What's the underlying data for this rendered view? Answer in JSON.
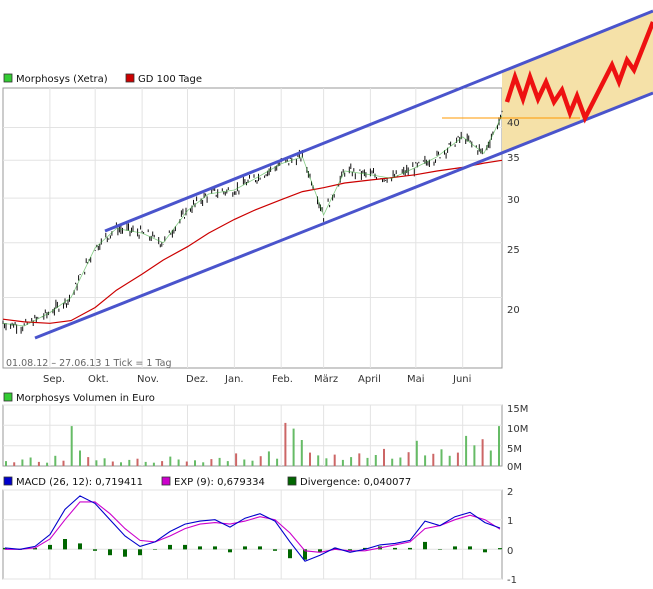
{
  "price_panel": {
    "legend": [
      {
        "label": "Morphosys (Xetra)",
        "color": "#33cc33"
      },
      {
        "label": "GD 100 Tage",
        "color": "#cc0000"
      }
    ],
    "range_label": "01.08.12 – 27.06.13   1 Tick = 1 Tag",
    "y_ticks": [
      "40",
      "35",
      "30",
      "25",
      "20"
    ],
    "x_ticks": [
      "Sep.",
      "Okt.",
      "Nov.",
      "Dez.",
      "Jan.",
      "Feb.",
      "März",
      "April",
      "Mai",
      "Juni"
    ]
  },
  "volume_panel": {
    "legend": {
      "label": "Morphosys Volumen in Euro",
      "color": "#33cc33"
    },
    "y_ticks": [
      "15M",
      "10M",
      "5M",
      "0M"
    ]
  },
  "macd_panel": {
    "legend": [
      {
        "label": "MACD (26, 12): 0,719411",
        "color": "#0000cc"
      },
      {
        "label": "EXP (9): 0,679334",
        "color": "#cc00cc"
      },
      {
        "label": "Divergence: 0,040077",
        "color": "#006600"
      }
    ],
    "y_ticks": [
      "2",
      "1",
      "0",
      "-1"
    ]
  },
  "chart_data": [
    {
      "type": "line",
      "title": "",
      "xlabel": "",
      "ylabel": "",
      "x_range": [
        "2012-08-01",
        "2013-06-27"
      ],
      "ylim": [
        15,
        47
      ],
      "log_scale": true,
      "grid": true,
      "legend_placement": "top-left",
      "x": [
        "2012-08-01",
        "2012-08-15",
        "2012-09-01",
        "2012-09-15",
        "2012-10-01",
        "2012-10-15",
        "2012-11-01",
        "2012-11-15",
        "2012-12-01",
        "2012-12-15",
        "2013-01-01",
        "2013-01-15",
        "2013-02-01",
        "2013-02-15",
        "2013-03-01",
        "2013-03-15",
        "2013-04-01",
        "2013-04-15",
        "2013-05-01",
        "2013-05-15",
        "2013-06-01",
        "2013-06-15",
        "2013-06-27"
      ],
      "series": [
        {
          "name": "Morphosys (Xetra)",
          "color": "#33cc33",
          "values": [
            18.0,
            17.8,
            18.8,
            20.0,
            24.5,
            26.5,
            26.0,
            25.0,
            28.5,
            30.5,
            31.0,
            32.5,
            34.5,
            35.5,
            28.0,
            33.5,
            33.0,
            32.5,
            34.0,
            35.5,
            38.5,
            36.0,
            42.0
          ]
        },
        {
          "name": "GD 100 Tage",
          "color": "#cc0000",
          "values": [
            18.3,
            18.1,
            18.0,
            18.2,
            19.2,
            20.6,
            22.0,
            23.3,
            24.6,
            26.0,
            27.5,
            28.6,
            29.8,
            30.8,
            31.3,
            31.9,
            32.3,
            32.6,
            33.0,
            33.5,
            34.0,
            34.6,
            35.0
          ]
        }
      ],
      "annotations": [
        {
          "kind": "trend-channel-upper",
          "from": [
            "2012-10-03",
            26.9
          ],
          "to": [
            "2013-06-27",
            44.5
          ]
        },
        {
          "kind": "trend-channel-lower",
          "from": [
            "2012-08-20",
            17.6
          ],
          "to": [
            "2013-06-27",
            36.4
          ]
        },
        {
          "kind": "horizontal-line",
          "value": 40.6,
          "from": "2013-05-15",
          "to": "2013-06-27",
          "color": "#ff9900"
        },
        {
          "kind": "projection-zigzag",
          "color": "#ee1111"
        }
      ]
    },
    {
      "type": "bar",
      "title": "",
      "ylim": [
        0,
        15
      ],
      "unit": "M Euro",
      "series": [
        {
          "name": "Morphosys Volumen in Euro",
          "values": [
            1.2,
            0.9,
            1.6,
            2.1,
            1.0,
            0.8,
            2.5,
            1.3,
            9.8,
            3.8,
            2.2,
            1.4,
            1.9,
            1.1,
            0.9,
            1.5,
            1.8,
            1.0,
            0.8,
            1.2,
            2.3,
            1.6,
            1.1,
            1.4,
            0.9,
            1.7,
            2.0,
            1.2,
            3.1,
            1.6,
            1.3,
            2.4,
            3.6,
            1.8,
            10.6,
            9.2,
            6.4,
            3.3,
            2.6,
            1.9,
            2.8,
            1.5,
            2.2,
            3.1,
            2.0,
            2.7,
            4.2,
            1.8,
            2.1,
            3.4,
            6.2,
            2.6,
            3.0,
            4.1,
            2.5,
            3.3,
            7.4,
            5.1,
            6.6,
            3.8,
            9.8
          ]
        }
      ]
    },
    {
      "type": "line",
      "title": "",
      "ylim": [
        -1,
        2
      ],
      "series": [
        {
          "name": "MACD (26, 12)",
          "color": "#0000cc",
          "values": [
            0.05,
            0.0,
            0.1,
            0.5,
            1.35,
            1.8,
            1.55,
            1.0,
            0.45,
            0.1,
            0.25,
            0.6,
            0.85,
            0.95,
            1.0,
            0.75,
            1.05,
            1.2,
            0.95,
            0.25,
            -0.4,
            -0.2,
            0.05,
            -0.1,
            0.0,
            0.15,
            0.2,
            0.3,
            0.95,
            0.8,
            1.1,
            1.25,
            0.9,
            0.72
          ]
        },
        {
          "name": "EXP (9)",
          "color": "#cc00cc",
          "values": [
            0.0,
            0.0,
            0.05,
            0.35,
            1.0,
            1.6,
            1.6,
            1.2,
            0.7,
            0.3,
            0.25,
            0.45,
            0.7,
            0.85,
            0.9,
            0.85,
            0.95,
            1.1,
            1.0,
            0.55,
            -0.05,
            -0.1,
            0.0,
            -0.05,
            -0.05,
            0.05,
            0.15,
            0.25,
            0.7,
            0.8,
            1.0,
            1.15,
            1.0,
            0.68
          ]
        },
        {
          "name": "Divergence",
          "color": "#006600",
          "values": [
            0.05,
            0.0,
            0.05,
            0.15,
            0.35,
            0.2,
            -0.05,
            -0.2,
            -0.25,
            -0.2,
            0.0,
            0.15,
            0.15,
            0.1,
            0.1,
            -0.1,
            0.1,
            0.1,
            -0.05,
            -0.3,
            -0.35,
            -0.1,
            0.05,
            -0.05,
            0.05,
            0.1,
            0.05,
            0.05,
            0.25,
            0.0,
            0.1,
            0.1,
            -0.1,
            0.04
          ]
        }
      ]
    }
  ]
}
